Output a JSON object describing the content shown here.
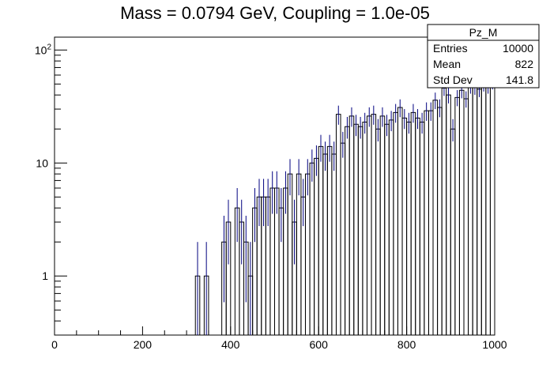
{
  "chart_data": {
    "type": "histogram",
    "title": "Mass = 0.0794 GeV, Coupling = 1.0e-05",
    "xlabel": "",
    "ylabel": "",
    "xlim": [
      0,
      1000
    ],
    "ylim": [
      0.3,
      130
    ],
    "y_scale": "log",
    "grid": false,
    "bin_width": 10,
    "x_ticks": [
      0,
      200,
      400,
      600,
      800,
      1000
    ],
    "x_tick_labels": [
      "0",
      "200",
      "400",
      "600",
      "800",
      "1000"
    ],
    "y_ticks": [
      1,
      10,
      100
    ],
    "y_tick_labels": [
      "1",
      "10",
      "10^2"
    ],
    "line_color": "#000000",
    "error_color": "#000080",
    "stats_box": {
      "name": "Pz_M",
      "rows": [
        {
          "label": "Entries",
          "value": "10000"
        },
        {
          "label": "Mean",
          "value": "822"
        },
        {
          "label": "Std Dev",
          "value": "141.8"
        }
      ]
    },
    "bins": [
      {
        "x": 325,
        "y": 1
      },
      {
        "x": 345,
        "y": 1
      },
      {
        "x": 385,
        "y": 2
      },
      {
        "x": 395,
        "y": 3
      },
      {
        "x": 415,
        "y": 4
      },
      {
        "x": 425,
        "y": 3
      },
      {
        "x": 435,
        "y": 2
      },
      {
        "x": 445,
        "y": 1
      },
      {
        "x": 455,
        "y": 4
      },
      {
        "x": 465,
        "y": 5
      },
      {
        "x": 475,
        "y": 5
      },
      {
        "x": 485,
        "y": 5
      },
      {
        "x": 495,
        "y": 6
      },
      {
        "x": 505,
        "y": 6
      },
      {
        "x": 515,
        "y": 4
      },
      {
        "x": 525,
        "y": 6
      },
      {
        "x": 535,
        "y": 8
      },
      {
        "x": 545,
        "y": 3
      },
      {
        "x": 555,
        "y": 8
      },
      {
        "x": 565,
        "y": 5
      },
      {
        "x": 575,
        "y": 8
      },
      {
        "x": 585,
        "y": 10
      },
      {
        "x": 595,
        "y": 11
      },
      {
        "x": 605,
        "y": 14
      },
      {
        "x": 615,
        "y": 12
      },
      {
        "x": 625,
        "y": 14
      },
      {
        "x": 635,
        "y": 12
      },
      {
        "x": 645,
        "y": 27
      },
      {
        "x": 655,
        "y": 15
      },
      {
        "x": 665,
        "y": 21
      },
      {
        "x": 675,
        "y": 26
      },
      {
        "x": 685,
        "y": 22
      },
      {
        "x": 695,
        "y": 21
      },
      {
        "x": 705,
        "y": 23
      },
      {
        "x": 715,
        "y": 26
      },
      {
        "x": 725,
        "y": 27
      },
      {
        "x": 735,
        "y": 20
      },
      {
        "x": 745,
        "y": 26
      },
      {
        "x": 755,
        "y": 22
      },
      {
        "x": 765,
        "y": 24
      },
      {
        "x": 775,
        "y": 28
      },
      {
        "x": 785,
        "y": 31
      },
      {
        "x": 795,
        "y": 25
      },
      {
        "x": 805,
        "y": 23
      },
      {
        "x": 815,
        "y": 28
      },
      {
        "x": 825,
        "y": 25
      },
      {
        "x": 835,
        "y": 23
      },
      {
        "x": 845,
        "y": 29
      },
      {
        "x": 855,
        "y": 29
      },
      {
        "x": 865,
        "y": 36
      },
      {
        "x": 875,
        "y": 31
      },
      {
        "x": 885,
        "y": 46
      },
      {
        "x": 895,
        "y": 40
      },
      {
        "x": 905,
        "y": 20
      },
      {
        "x": 915,
        "y": 38
      },
      {
        "x": 925,
        "y": 44
      },
      {
        "x": 935,
        "y": 37
      },
      {
        "x": 945,
        "y": 48
      },
      {
        "x": 955,
        "y": 47
      },
      {
        "x": 965,
        "y": 45
      },
      {
        "x": 975,
        "y": 50
      },
      {
        "x": 985,
        "y": 48
      },
      {
        "x": 995,
        "y": 52
      }
    ]
  }
}
